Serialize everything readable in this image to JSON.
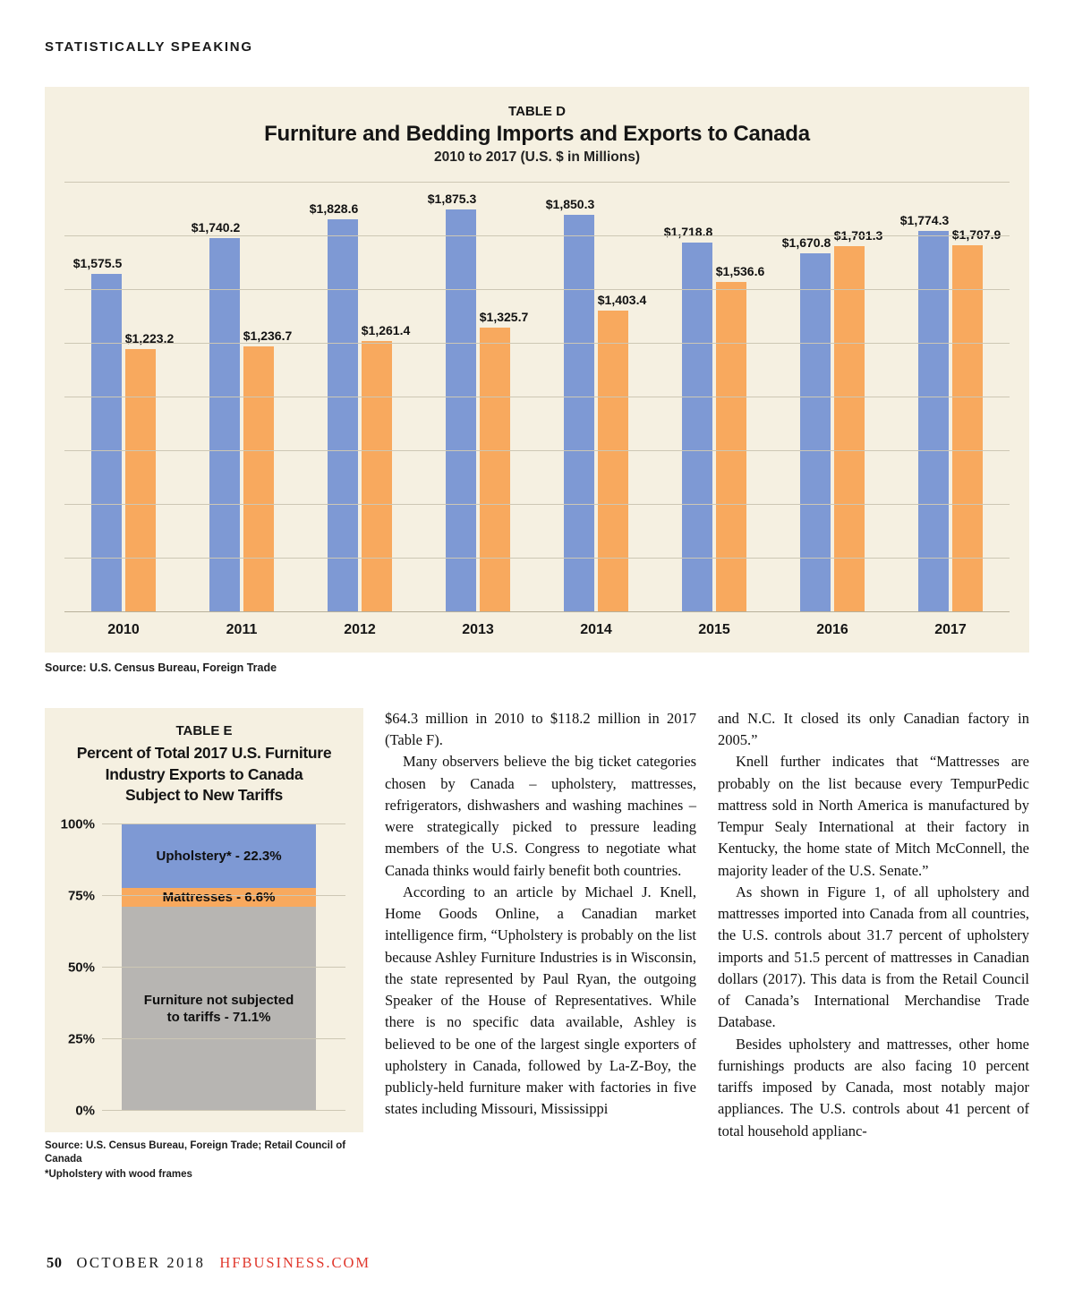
{
  "kicker": "STATISTICALLY SPEAKING",
  "colors": {
    "panel_background": "#f5f0e1",
    "bar_blue": "#7e99d4",
    "bar_orange": "#f8a95e",
    "bar_gray": "#b7b5b2",
    "accent_red": "#e0382d"
  },
  "chart_data": [
    {
      "type": "bar",
      "label": "TABLE D",
      "title": "Furniture and Bedding Imports and Exports to Canada",
      "subtitle": "2010 to 2017 (U.S. $ in Millions)",
      "categories": [
        "2010",
        "2011",
        "2012",
        "2013",
        "2014",
        "2015",
        "2016",
        "2017"
      ],
      "series": [
        {
          "name": "Imports",
          "color": "#7e99d4",
          "values": [
            1575.5,
            1740.2,
            1828.6,
            1875.3,
            1850.3,
            1718.8,
            1670.8,
            1774.3
          ],
          "labels": [
            "$1,575.5",
            "$1,740.2",
            "$1,828.6",
            "$1,875.3",
            "$1,850.3",
            "$1,718.8",
            "$1,670.8",
            "$1,774.3"
          ]
        },
        {
          "name": "Exports",
          "color": "#f8a95e",
          "values": [
            1223.2,
            1236.7,
            1261.4,
            1325.7,
            1403.4,
            1536.6,
            1701.3,
            1707.9
          ],
          "labels": [
            "$1,223.2",
            "$1,236.7",
            "$1,261.4",
            "$1,325.7",
            "$1,403.4",
            "$1,536.6",
            "$1,701.3",
            "$1,707.9"
          ]
        }
      ],
      "ylim": [
        0,
        2000
      ],
      "grid_step": 250,
      "grid": true,
      "legend": "none",
      "source": "Source: U.S. Census Bureau, Foreign Trade"
    },
    {
      "type": "stacked-bar",
      "label": "TABLE E",
      "title": "Percent of Total 2017 U.S. Furniture\nIndustry Exports to Canada\nSubject to New Tariffs",
      "yticks": [
        "100%",
        "75%",
        "50%",
        "25%",
        "0%"
      ],
      "ylim": [
        0,
        100
      ],
      "segments": [
        {
          "label": "Upholstery* - 22.3%",
          "value": 22.3,
          "color": "#7e99d4"
        },
        {
          "label": "Mattresses - 6.6%",
          "value": 6.6,
          "color": "#f8a95e"
        },
        {
          "label": "Furniture not subjected\nto tariffs - 71.1%",
          "value": 71.1,
          "color": "#b7b5b2"
        }
      ],
      "source": "Source: U.S. Census Bureau, Foreign Trade; Retail Council of Canada",
      "footnote": "*Upholstery with wood frames"
    }
  ],
  "article": {
    "col1": [
      "$64.3 million in 2010 to $118.2 million in 2017 (Table F).",
      "Many observers believe the big ticket categories chosen by Canada – upholstery, mattresses, refrigerators, dishwashers and washing machines – were strategically picked to pressure leading members of the U.S. Congress to negotiate what Canada thinks would fairly benefit both countries.",
      "According to an article by Michael J. Knell, Home Goods Online, a Canadian market intelligence firm, “Upholstery is probably on the list because Ashley Furniture Industries is in Wisconsin, the state represented by Paul Ryan, the outgoing Speaker of the House of Representatives. While there is no specific data available, Ashley is believed to be one of the largest single exporters of upholstery in Canada, followed by La-Z-Boy, the publicly-held furniture maker with factories in five states including Missouri, Mississippi"
    ],
    "col2": [
      "and N.C. It closed its only Canadian factory in 2005.”",
      "Knell further indicates that “Mattresses are probably on the list because every TempurPedic mattress sold in North America is manufactured by Tempur Sealy International at their factory in Kentucky, the home state of Mitch McConnell, the majority leader of the U.S. Senate.”",
      "As shown in Figure 1, of all upholstery and mattresses imported into Canada from all countries, the U.S. controls about 31.7 percent of upholstery imports and 51.5 percent of mattresses in Canadian dollars (2017). This data is from the Retail Council of Canada’s International Merchandise Trade Database.",
      "Besides upholstery and mattresses, other home furnishings products are also facing 10 percent tariffs imposed by Canada, most notably major appliances. The U.S. controls about 41 percent of total household applianc-"
    ]
  },
  "footer": {
    "page_number": "50",
    "issue": "OCTOBER 2018",
    "site": "HFBUSINESS.COM"
  }
}
